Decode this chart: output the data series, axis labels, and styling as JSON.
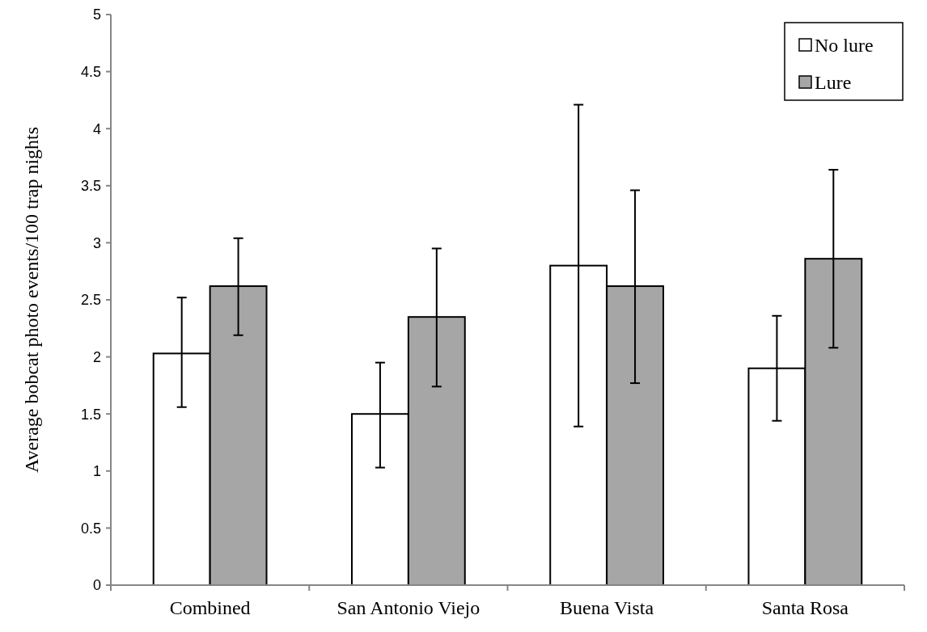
{
  "chart_data": {
    "type": "bar",
    "ylabel": "Average bobcat photo events/100 trap nights",
    "categories": [
      "Combined",
      "San Antonio Viejo",
      "Buena Vista",
      "Santa Rosa"
    ],
    "series": [
      {
        "name": "No lure",
        "color": "#ffffff",
        "values": [
          2.03,
          1.5,
          2.8,
          1.9
        ],
        "errors": [
          [
            1.56,
            2.52
          ],
          [
            1.03,
            1.95
          ],
          [
            1.39,
            4.21
          ],
          [
            1.44,
            2.36
          ]
        ]
      },
      {
        "name": "Lure",
        "color": "#a6a6a6",
        "values": [
          2.62,
          2.35,
          2.62,
          2.86
        ],
        "errors": [
          [
            2.19,
            3.04
          ],
          [
            1.74,
            2.95
          ],
          [
            1.77,
            3.46
          ],
          [
            2.08,
            3.64
          ]
        ]
      }
    ],
    "ylim": [
      0,
      5
    ],
    "yticks": [
      0,
      0.5,
      1,
      1.5,
      2,
      2.5,
      3,
      3.5,
      4,
      4.5,
      5
    ],
    "grid": false,
    "legend": "top right"
  }
}
